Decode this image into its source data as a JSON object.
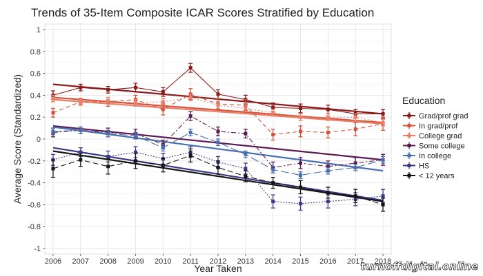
{
  "chart_data": {
    "type": "line",
    "title": "Trends of 35-Item Composite ICAR Scores Stratified by Education",
    "xlabel": "Year Taken",
    "ylabel": "Average Score (Standardized)",
    "x": [
      2006,
      2007,
      2008,
      2009,
      2010,
      2011,
      2012,
      2013,
      2014,
      2015,
      2016,
      2017,
      2018
    ],
    "xlim": [
      2005.7,
      2018.3
    ],
    "ylim": [
      -1.05,
      1.05
    ],
    "yticks": [
      -1,
      -0.8,
      -0.6,
      -0.4,
      -0.2,
      0,
      0.2,
      0.4,
      0.6,
      0.8,
      1
    ],
    "grid": true,
    "legend": {
      "title": "Education",
      "position": "right"
    },
    "series": [
      {
        "name": "Grad/prof grad",
        "color": "#8c1a1a",
        "dash": "solid",
        "values": [
          0.4,
          0.47,
          0.45,
          0.47,
          0.43,
          0.65,
          0.41,
          0.36,
          0.29,
          0.28,
          0.27,
          0.23,
          0.23
        ],
        "err": [
          0.04,
          0.03,
          0.03,
          0.04,
          0.04,
          0.04,
          0.04,
          0.04,
          0.04,
          0.04,
          0.04,
          0.04,
          0.04
        ],
        "trend": [
          0.5,
          0.23
        ]
      },
      {
        "name": "In grad/prof",
        "color": "#d4533c",
        "dash": "6,4",
        "values": [
          0.24,
          0.34,
          0.34,
          0.36,
          0.27,
          0.41,
          0.32,
          0.31,
          0.04,
          0.07,
          0.06,
          0.09,
          0.14
        ],
        "err": [
          0.04,
          0.03,
          0.04,
          0.04,
          0.05,
          0.05,
          0.05,
          0.05,
          0.05,
          0.05,
          0.05,
          0.06,
          0.06
        ],
        "trend": [
          0.38,
          0.15
        ]
      },
      {
        "name": "College grad",
        "color": "#e8806a",
        "dash": "2,3",
        "values": [
          0.37,
          0.34,
          0.35,
          0.33,
          0.34,
          0.38,
          0.31,
          0.28,
          0.24,
          0.2,
          0.2,
          0.2,
          0.15
        ],
        "err": [
          0.03,
          0.02,
          0.03,
          0.03,
          0.03,
          0.03,
          0.03,
          0.03,
          0.03,
          0.03,
          0.03,
          0.03,
          0.03
        ],
        "trend": [
          0.36,
          0.14
        ]
      },
      {
        "name": "Some college",
        "color": "#5a1a52",
        "dash": "7,3,2,3",
        "values": [
          0.06,
          0.08,
          0.06,
          0.05,
          -0.05,
          0.21,
          0.07,
          0.05,
          -0.26,
          -0.22,
          -0.25,
          -0.22,
          -0.19
        ],
        "err": [
          0.04,
          0.03,
          0.04,
          0.04,
          0.04,
          0.04,
          0.04,
          0.04,
          0.05,
          0.05,
          0.05,
          0.05,
          0.05
        ],
        "trend": [
          0.12,
          -0.19
        ]
      },
      {
        "name": "In college",
        "color": "#4a6fb0",
        "dash": "12,4",
        "values": [
          0.07,
          0.08,
          0.05,
          0.03,
          -0.08,
          0.06,
          -0.03,
          -0.14,
          -0.28,
          -0.33,
          -0.29,
          -0.26,
          -0.19
        ],
        "err": [
          0.03,
          0.03,
          0.03,
          0.03,
          0.03,
          0.03,
          0.03,
          0.03,
          0.03,
          0.03,
          0.03,
          0.03,
          0.03
        ],
        "trend": [
          0.11,
          -0.29
        ]
      },
      {
        "name": "HS",
        "color": "#3a3a88",
        "dash": "2,2",
        "values": [
          -0.19,
          -0.12,
          -0.16,
          -0.12,
          -0.18,
          -0.12,
          -0.21,
          -0.27,
          -0.57,
          -0.59,
          -0.57,
          -0.55,
          -0.52
        ],
        "err": [
          0.05,
          0.04,
          0.05,
          0.05,
          0.05,
          0.05,
          0.05,
          0.05,
          0.06,
          0.06,
          0.06,
          0.06,
          0.06
        ],
        "trend": [
          -0.08,
          -0.56
        ]
      },
      {
        "name": "< 12 years",
        "color": "#151515",
        "dash": "8,4",
        "values": [
          -0.27,
          -0.19,
          -0.25,
          -0.2,
          -0.24,
          -0.15,
          -0.26,
          -0.34,
          -0.4,
          -0.44,
          -0.49,
          -0.52,
          -0.6
        ],
        "err": [
          0.08,
          0.06,
          0.07,
          0.07,
          0.06,
          0.06,
          0.06,
          0.05,
          0.05,
          0.06,
          0.05,
          0.06,
          0.06
        ],
        "trend": [
          -0.11,
          -0.57
        ]
      }
    ]
  },
  "watermark": "turnoffdigital.online"
}
